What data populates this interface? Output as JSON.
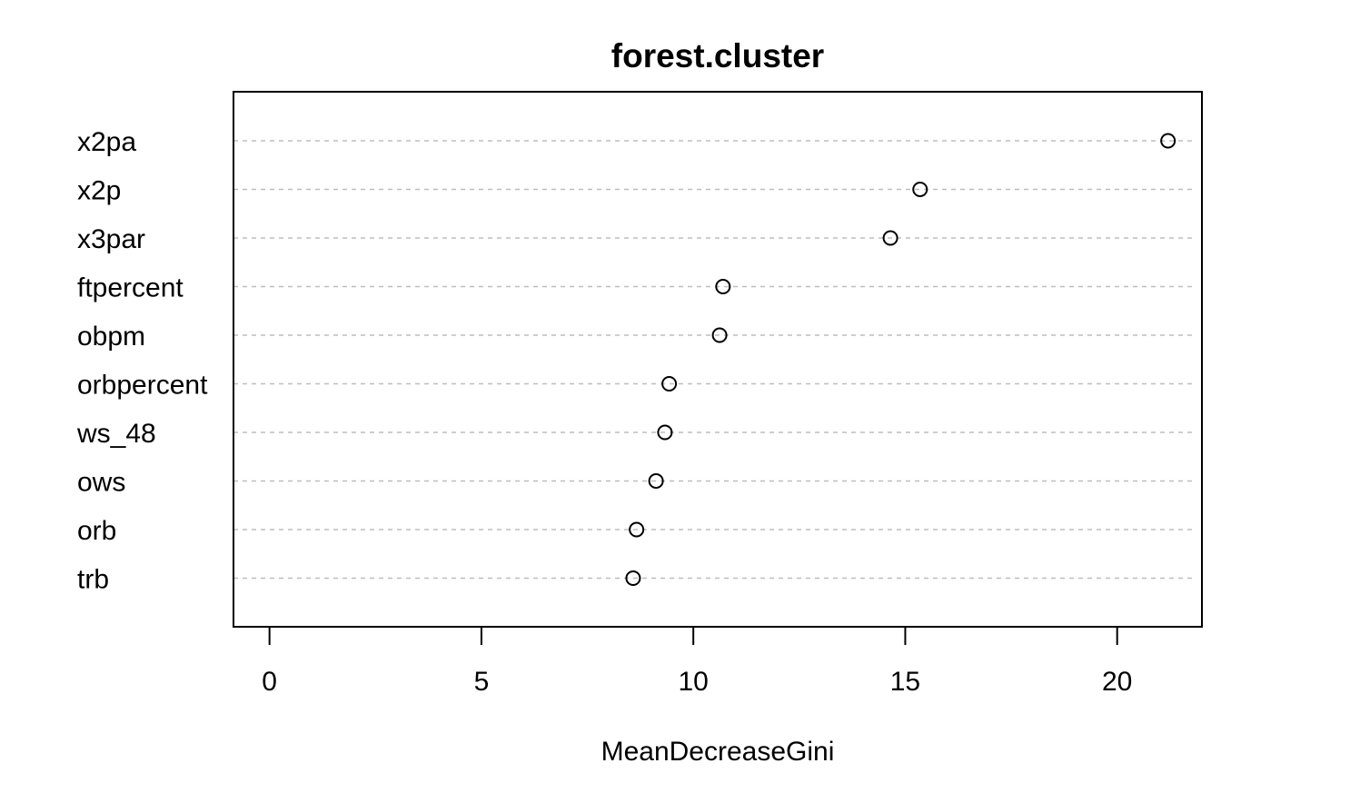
{
  "chart_data": {
    "type": "scatter",
    "title": "forest.cluster",
    "xlabel": "MeanDecreaseGini",
    "ylabel": "",
    "xlim": [
      -0.85,
      22.0
    ],
    "xticks": [
      "0",
      "5",
      "10",
      "15",
      "20"
    ],
    "grid": "dotted horizontal lines",
    "categories": [
      "x2pa",
      "x2p",
      "x3par",
      "ftpercent",
      "obpm",
      "orbpercent",
      "ws_48",
      "ows",
      "orb",
      "trb"
    ],
    "values": [
      21.2,
      15.35,
      14.65,
      10.7,
      10.62,
      9.43,
      9.33,
      9.12,
      8.66,
      8.58
    ]
  }
}
